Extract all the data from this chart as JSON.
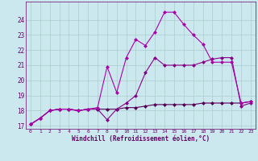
{
  "background_color": "#cce8ef",
  "grid_color": "#aacccc",
  "line_color_peak": "#aa00aa",
  "line_color_mid": "#880088",
  "line_color_flat": "#550055",
  "xlabel": "Windchill (Refroidissement éolien,°C)",
  "xlim": [
    -0.5,
    23.5
  ],
  "ylim": [
    16.8,
    25.2
  ],
  "yticks": [
    17,
    18,
    19,
    20,
    21,
    22,
    23,
    24
  ],
  "xticks": [
    0,
    1,
    2,
    3,
    4,
    5,
    6,
    7,
    8,
    9,
    10,
    11,
    12,
    13,
    14,
    15,
    16,
    17,
    18,
    19,
    20,
    21,
    22,
    23
  ],
  "series_peak_x": [
    0,
    1,
    2,
    3,
    4,
    5,
    6,
    7,
    8,
    9,
    10,
    11,
    12,
    13,
    14,
    15,
    16,
    17,
    18,
    19,
    20,
    21,
    22,
    23
  ],
  "series_peak_y": [
    17.1,
    17.5,
    18.0,
    18.1,
    18.1,
    18.0,
    18.1,
    18.2,
    20.9,
    19.2,
    21.5,
    22.7,
    22.3,
    23.2,
    24.5,
    24.5,
    23.7,
    23.0,
    22.4,
    21.2,
    21.2,
    21.2,
    18.5,
    18.6
  ],
  "series_mid_x": [
    0,
    1,
    2,
    3,
    4,
    5,
    6,
    7,
    8,
    9,
    10,
    11,
    12,
    13,
    14,
    15,
    16,
    17,
    18,
    19,
    20,
    21,
    22,
    23
  ],
  "series_mid_y": [
    17.1,
    17.5,
    18.0,
    18.1,
    18.1,
    18.0,
    18.1,
    18.1,
    17.4,
    18.1,
    18.5,
    19.0,
    20.5,
    21.5,
    21.0,
    21.0,
    21.0,
    21.0,
    21.2,
    21.4,
    21.5,
    21.5,
    18.3,
    18.5
  ],
  "series_flat_x": [
    0,
    1,
    2,
    3,
    4,
    5,
    6,
    7,
    8,
    9,
    10,
    11,
    12,
    13,
    14,
    15,
    16,
    17,
    18,
    19,
    20,
    21,
    22,
    23
  ],
  "series_flat_y": [
    17.1,
    17.5,
    18.0,
    18.1,
    18.1,
    18.0,
    18.1,
    18.1,
    18.1,
    18.1,
    18.2,
    18.2,
    18.3,
    18.4,
    18.4,
    18.4,
    18.4,
    18.4,
    18.5,
    18.5,
    18.5,
    18.5,
    18.5,
    18.6
  ]
}
